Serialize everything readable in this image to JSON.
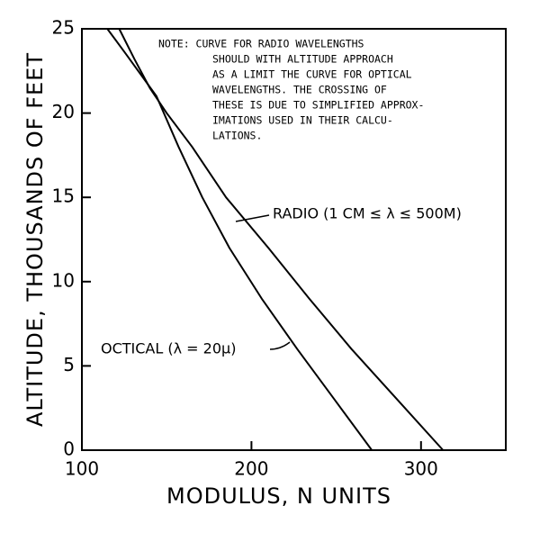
{
  "chart_data": {
    "type": "line",
    "xlabel": "MODULUS, N UNITS",
    "ylabel": "ALTITUDE, THOUSANDS OF FEET",
    "xlim": [
      100,
      350
    ],
    "xticks": [
      100,
      200,
      300
    ],
    "ylim": [
      0,
      25
    ],
    "yticks": [
      0,
      5,
      10,
      15,
      20,
      25
    ],
    "note": [
      "NOTE: CURVE FOR RADIO WAVELENGTHS",
      "SHOULD WITH ALTITUDE APPROACH",
      "AS A LIMIT THE CURVE FOR OPTICAL",
      "WAVELENGTHS. THE CROSSING OF",
      "THESE IS DUE TO SIMPLIFIED APPROX-",
      "IMATIONS USED IN THEIR CALCU-",
      "LATIONS."
    ],
    "annotations": [
      "RADIO (1 CM ≤ λ ≤ 500M)",
      "OCTICAL (λ = 20μ)"
    ],
    "series": [
      {
        "color": "#000000",
        "x": [
          313,
          286,
          259,
          234,
          210,
          185,
          165,
          150,
          140,
          131,
          122
        ],
        "values": [
          0,
          3,
          6,
          9,
          12,
          15,
          18,
          20,
          21.5,
          23.2,
          25
        ]
      },
      {
        "color": "#000000",
        "x": [
          271,
          249,
          227,
          206,
          187,
          171,
          157,
          144,
          126,
          115
        ],
        "values": [
          0,
          3,
          6,
          9,
          12,
          15,
          18,
          21,
          23.5,
          25
        ]
      }
    ]
  }
}
